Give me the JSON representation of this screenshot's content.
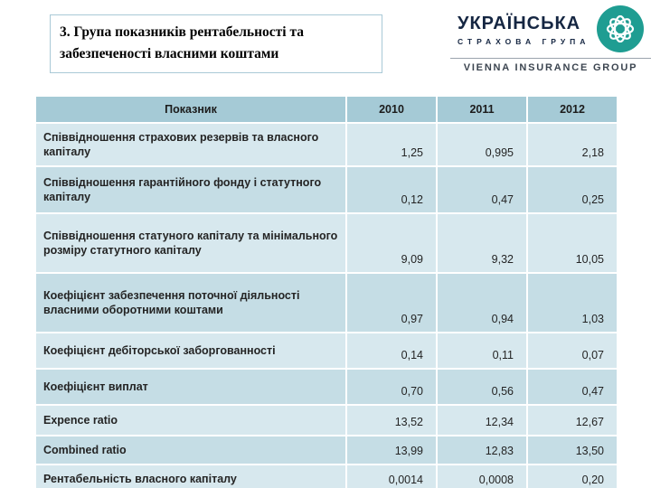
{
  "title": {
    "lines": [
      "3. Група показників рентабельності та",
      "забезпеченості власними коштами"
    ]
  },
  "logo": {
    "brand": "УКРАЇНСЬКА",
    "sub_brand": "СТРАХОВА ГРУПА",
    "group": "VIENNA INSURANCE GROUP",
    "icon": "usg-knot-icon",
    "colors": {
      "navy": "#152642",
      "teal": "#1f9d92",
      "gray": "#3c4550"
    }
  },
  "chart_data": {
    "type": "table",
    "title": "3. Група показників рентабельності та забезпеченості власними коштами",
    "headers": [
      "Показник",
      "2010",
      "2011",
      "2012"
    ],
    "rows": [
      {
        "label": "Співвідношення страхових резервів та власного капіталу",
        "values": [
          "1,25",
          "0,995",
          "2,18"
        ]
      },
      {
        "label": "Співвідношення гарантійного фонду і статутного капіталу",
        "values": [
          "0,12",
          "0,47",
          "0,25"
        ]
      },
      {
        "label": "Співвідношення статуного капіталу та мінімального розміру статутного капіталу",
        "values": [
          "9,09",
          "9,32",
          "10,05"
        ]
      },
      {
        "label": "Коефіцієнт забезпечення поточної діяльності власними оборотними коштами",
        "values": [
          "0,97",
          "0,94",
          "1,03"
        ]
      },
      {
        "label": "Коефіцієнт дебіторської заборгованності",
        "values": [
          "0,14",
          "0,11",
          "0,07"
        ]
      },
      {
        "label": "Коефіцієнт виплат",
        "values": [
          "0,70",
          "0,56",
          "0,47"
        ]
      },
      {
        "label": "Expence ratio",
        "values": [
          "13,52",
          "12,34",
          "12,67"
        ]
      },
      {
        "label": "Combined ratio",
        "values": [
          "13,99",
          "12,83",
          "13,50"
        ]
      },
      {
        "label": "Рентабельність власного капіталу",
        "values": [
          "0,0014",
          "0,0008",
          "0,20"
        ]
      }
    ],
    "colors": {
      "header_bg": "#a5cad6",
      "row_odd_bg": "#d7e8ee",
      "row_even_bg": "#c5dde5"
    }
  }
}
